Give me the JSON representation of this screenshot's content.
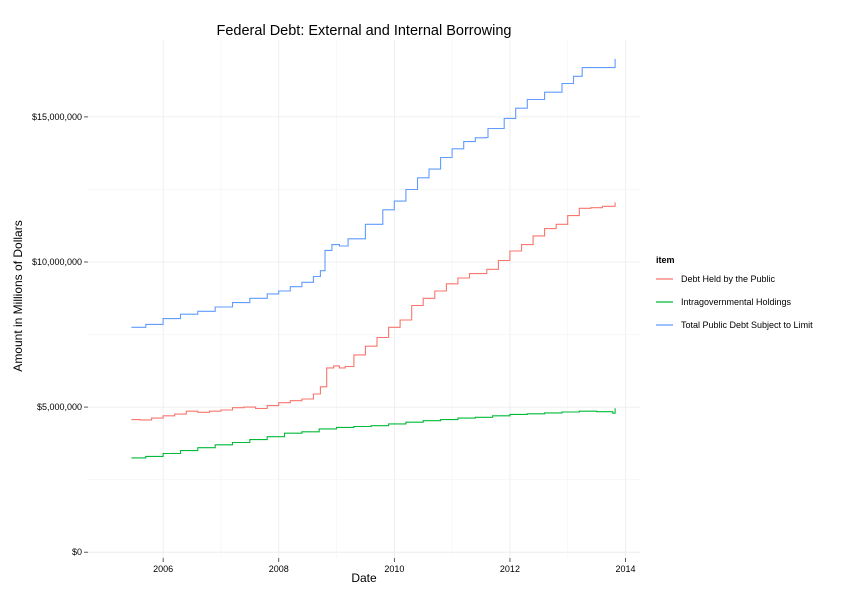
{
  "chart_data": {
    "type": "line",
    "title": "Federal Debt: External and Internal Borrowing",
    "xlabel": "Date",
    "ylabel": "Amount in Millions of Dollars",
    "x_ticks": [
      2006,
      2008,
      2010,
      2012,
      2014
    ],
    "y_ticks": [
      {
        "value": 0,
        "label": "$0"
      },
      {
        "value": 5000000,
        "label": "$5,000,000"
      },
      {
        "value": 10000000,
        "label": "$10,000,000"
      },
      {
        "value": 15000000,
        "label": "$15,000,000"
      }
    ],
    "xlim": [
      2004.7,
      2014.25
    ],
    "ylim": [
      -200000,
      17650000
    ],
    "grid": true,
    "legend": {
      "title": "item",
      "position": "right"
    },
    "series": [
      {
        "name": "Debt Held by the Public",
        "color": "#F8766D",
        "points": [
          [
            2005.45,
            4570000
          ],
          [
            2005.6,
            4560000
          ],
          [
            2005.8,
            4620000
          ],
          [
            2006.0,
            4700000
          ],
          [
            2006.2,
            4760000
          ],
          [
            2006.4,
            4860000
          ],
          [
            2006.6,
            4820000
          ],
          [
            2006.8,
            4860000
          ],
          [
            2007.0,
            4900000
          ],
          [
            2007.2,
            4980000
          ],
          [
            2007.4,
            5000000
          ],
          [
            2007.6,
            4950000
          ],
          [
            2007.8,
            5050000
          ],
          [
            2008.0,
            5150000
          ],
          [
            2008.2,
            5220000
          ],
          [
            2008.4,
            5280000
          ],
          [
            2008.6,
            5450000
          ],
          [
            2008.72,
            5700000
          ],
          [
            2008.83,
            6350000
          ],
          [
            2008.95,
            6420000
          ],
          [
            2009.05,
            6350000
          ],
          [
            2009.15,
            6400000
          ],
          [
            2009.3,
            6800000
          ],
          [
            2009.5,
            7100000
          ],
          [
            2009.7,
            7400000
          ],
          [
            2009.9,
            7750000
          ],
          [
            2010.1,
            8000000
          ],
          [
            2010.3,
            8500000
          ],
          [
            2010.5,
            8750000
          ],
          [
            2010.7,
            9000000
          ],
          [
            2010.9,
            9250000
          ],
          [
            2011.1,
            9450000
          ],
          [
            2011.3,
            9600000
          ],
          [
            2011.6,
            9750000
          ],
          [
            2011.8,
            10050000
          ],
          [
            2012.0,
            10380000
          ],
          [
            2012.2,
            10600000
          ],
          [
            2012.4,
            10900000
          ],
          [
            2012.6,
            11150000
          ],
          [
            2012.8,
            11300000
          ],
          [
            2013.0,
            11600000
          ],
          [
            2013.2,
            11850000
          ],
          [
            2013.4,
            11870000
          ],
          [
            2013.6,
            11920000
          ],
          [
            2013.8,
            11920000
          ],
          [
            2013.82,
            12050000
          ]
        ]
      },
      {
        "name": "Intragovernmental Holdings",
        "color": "#00BA38",
        "points": [
          [
            2005.45,
            3250000
          ],
          [
            2005.7,
            3300000
          ],
          [
            2006.0,
            3400000
          ],
          [
            2006.3,
            3500000
          ],
          [
            2006.6,
            3600000
          ],
          [
            2006.9,
            3700000
          ],
          [
            2007.2,
            3780000
          ],
          [
            2007.5,
            3880000
          ],
          [
            2007.8,
            3980000
          ],
          [
            2008.1,
            4100000
          ],
          [
            2008.4,
            4150000
          ],
          [
            2008.7,
            4250000
          ],
          [
            2009.0,
            4300000
          ],
          [
            2009.3,
            4330000
          ],
          [
            2009.6,
            4360000
          ],
          [
            2009.9,
            4420000
          ],
          [
            2010.2,
            4480000
          ],
          [
            2010.5,
            4530000
          ],
          [
            2010.8,
            4570000
          ],
          [
            2011.1,
            4620000
          ],
          [
            2011.4,
            4650000
          ],
          [
            2011.7,
            4700000
          ],
          [
            2012.0,
            4750000
          ],
          [
            2012.3,
            4770000
          ],
          [
            2012.6,
            4800000
          ],
          [
            2012.9,
            4830000
          ],
          [
            2013.2,
            4860000
          ],
          [
            2013.5,
            4840000
          ],
          [
            2013.78,
            4790000
          ],
          [
            2013.82,
            4960000
          ]
        ]
      },
      {
        "name": "Total Public Debt Subject to Limit",
        "color": "#619CFF",
        "points": [
          [
            2005.45,
            7750000
          ],
          [
            2005.7,
            7850000
          ],
          [
            2006.0,
            8050000
          ],
          [
            2006.3,
            8200000
          ],
          [
            2006.6,
            8300000
          ],
          [
            2006.9,
            8450000
          ],
          [
            2007.2,
            8600000
          ],
          [
            2007.5,
            8750000
          ],
          [
            2007.8,
            8900000
          ],
          [
            2008.0,
            9000000
          ],
          [
            2008.2,
            9150000
          ],
          [
            2008.4,
            9300000
          ],
          [
            2008.6,
            9500000
          ],
          [
            2008.72,
            9700000
          ],
          [
            2008.8,
            10400000
          ],
          [
            2008.92,
            10600000
          ],
          [
            2009.05,
            10550000
          ],
          [
            2009.2,
            10800000
          ],
          [
            2009.5,
            11300000
          ],
          [
            2009.8,
            11800000
          ],
          [
            2010.0,
            12100000
          ],
          [
            2010.2,
            12500000
          ],
          [
            2010.4,
            12900000
          ],
          [
            2010.6,
            13200000
          ],
          [
            2010.8,
            13600000
          ],
          [
            2011.0,
            13900000
          ],
          [
            2011.2,
            14150000
          ],
          [
            2011.4,
            14280000
          ],
          [
            2011.58,
            14290000
          ],
          [
            2011.62,
            14600000
          ],
          [
            2011.9,
            14950000
          ],
          [
            2012.1,
            15300000
          ],
          [
            2012.3,
            15600000
          ],
          [
            2012.6,
            15850000
          ],
          [
            2012.9,
            16150000
          ],
          [
            2013.1,
            16400000
          ],
          [
            2013.25,
            16700000
          ],
          [
            2013.35,
            16700000
          ],
          [
            2013.8,
            16700000
          ],
          [
            2013.82,
            17000000
          ]
        ]
      }
    ]
  }
}
